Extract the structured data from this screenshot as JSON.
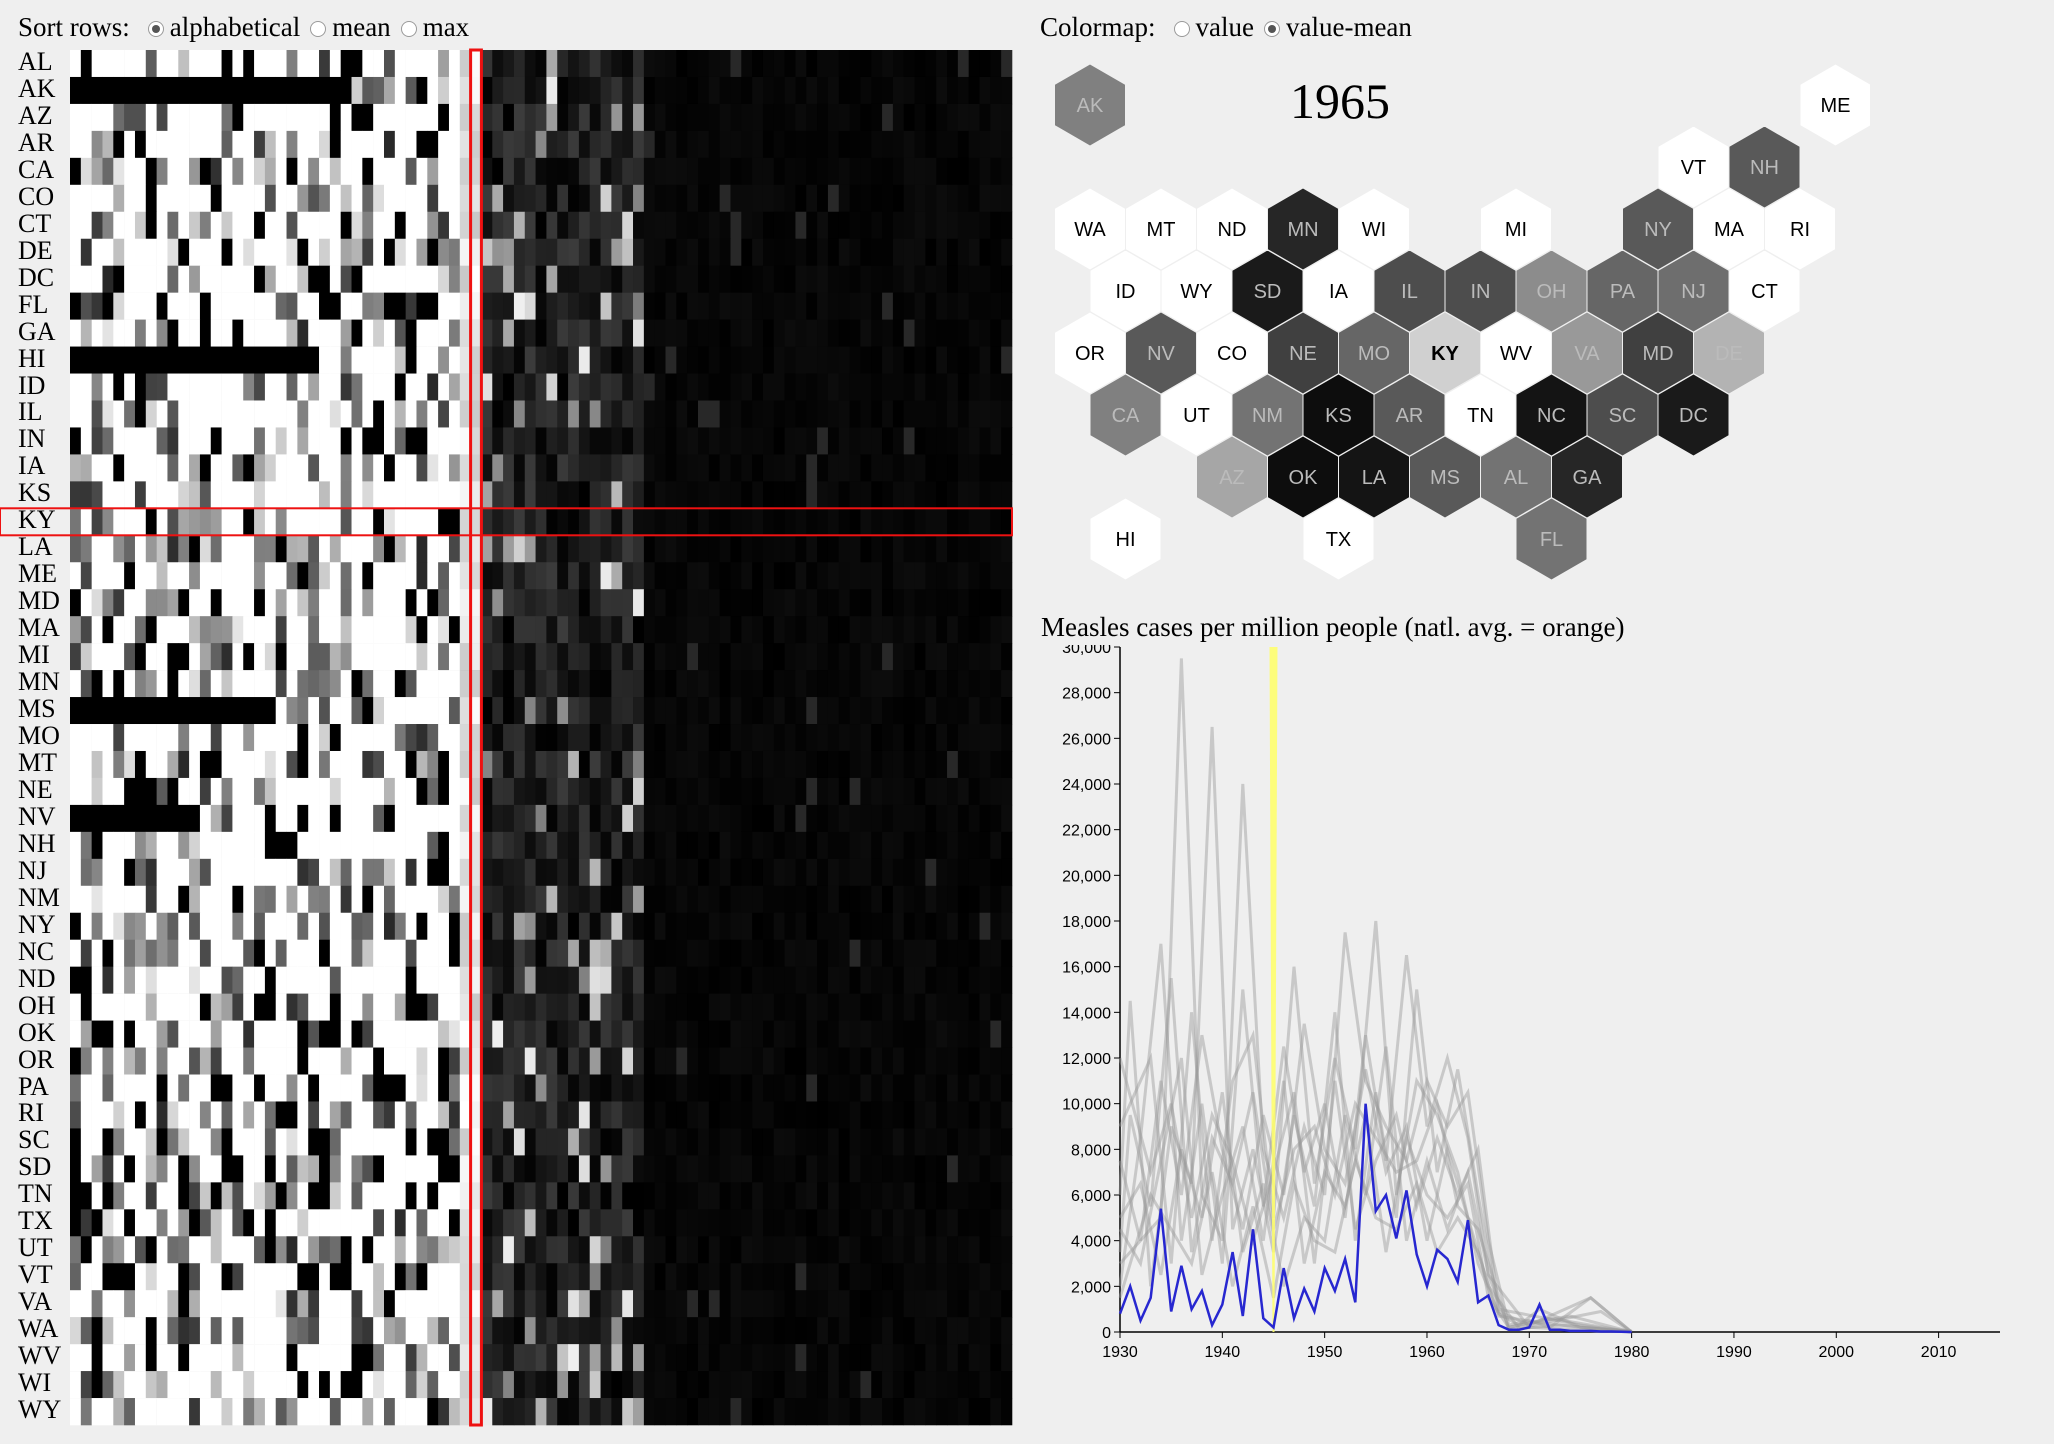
{
  "sort_controls": {
    "label": "Sort rows:",
    "options": [
      {
        "label": "alphabetical",
        "selected": true
      },
      {
        "label": "mean",
        "selected": false
      },
      {
        "label": "max",
        "selected": false
      }
    ]
  },
  "colormap_controls": {
    "label": "Colormap:",
    "options": [
      {
        "label": "value",
        "selected": false
      },
      {
        "label": "value-mean",
        "selected": true
      }
    ]
  },
  "states": [
    "AL",
    "AK",
    "AZ",
    "AR",
    "CA",
    "CO",
    "CT",
    "DE",
    "DC",
    "FL",
    "GA",
    "HI",
    "ID",
    "IL",
    "IN",
    "IA",
    "KS",
    "KY",
    "LA",
    "ME",
    "MD",
    "MA",
    "MI",
    "MN",
    "MS",
    "MO",
    "MT",
    "NE",
    "NV",
    "NH",
    "NJ",
    "NM",
    "NY",
    "NC",
    "ND",
    "OH",
    "OK",
    "OR",
    "PA",
    "RI",
    "SC",
    "SD",
    "TN",
    "TX",
    "UT",
    "VT",
    "VA",
    "WA",
    "WV",
    "WI",
    "WY"
  ],
  "selected_state": "KY",
  "selected_year": "1965",
  "hexmap": {
    "cells": [
      {
        "state": "AK",
        "row": 0,
        "col": 0,
        "shade": "#808080"
      },
      {
        "state": "ME",
        "row": 0,
        "col": 10.5,
        "shade": "#ffffff"
      },
      {
        "state": "VT",
        "row": 1,
        "col": 8.5,
        "shade": "#ffffff"
      },
      {
        "state": "NH",
        "row": 1,
        "col": 9.5,
        "shade": "#595959"
      },
      {
        "state": "WA",
        "row": 2,
        "col": 0,
        "shade": "#ffffff"
      },
      {
        "state": "MT",
        "row": 2,
        "col": 1,
        "shade": "#ffffff"
      },
      {
        "state": "ND",
        "row": 2,
        "col": 2,
        "shade": "#ffffff"
      },
      {
        "state": "MN",
        "row": 2,
        "col": 3,
        "shade": "#262626"
      },
      {
        "state": "WI",
        "row": 2,
        "col": 4,
        "shade": "#ffffff"
      },
      {
        "state": "MI",
        "row": 2,
        "col": 6,
        "shade": "#ffffff"
      },
      {
        "state": "NY",
        "row": 2,
        "col": 8,
        "shade": "#595959"
      },
      {
        "state": "MA",
        "row": 2,
        "col": 9,
        "shade": "#ffffff"
      },
      {
        "state": "RI",
        "row": 2,
        "col": 10,
        "shade": "#ffffff"
      },
      {
        "state": "ID",
        "row": 3,
        "col": 0.5,
        "shade": "#ffffff"
      },
      {
        "state": "WY",
        "row": 3,
        "col": 1.5,
        "shade": "#ffffff"
      },
      {
        "state": "SD",
        "row": 3,
        "col": 2.5,
        "shade": "#1a1a1a"
      },
      {
        "state": "IA",
        "row": 3,
        "col": 3.5,
        "shade": "#ffffff"
      },
      {
        "state": "IL",
        "row": 3,
        "col": 4.5,
        "shade": "#4d4d4d"
      },
      {
        "state": "IN",
        "row": 3,
        "col": 5.5,
        "shade": "#4d4d4d"
      },
      {
        "state": "OH",
        "row": 3,
        "col": 6.5,
        "shade": "#8c8c8c"
      },
      {
        "state": "PA",
        "row": 3,
        "col": 7.5,
        "shade": "#666666"
      },
      {
        "state": "NJ",
        "row": 3,
        "col": 8.5,
        "shade": "#6e6e6e"
      },
      {
        "state": "CT",
        "row": 3,
        "col": 9.5,
        "shade": "#ffffff"
      },
      {
        "state": "OR",
        "row": 4,
        "col": 0,
        "shade": "#ffffff"
      },
      {
        "state": "NV",
        "row": 4,
        "col": 1,
        "shade": "#595959"
      },
      {
        "state": "CO",
        "row": 4,
        "col": 2,
        "shade": "#ffffff"
      },
      {
        "state": "NE",
        "row": 4,
        "col": 3,
        "shade": "#404040"
      },
      {
        "state": "MO",
        "row": 4,
        "col": 4,
        "shade": "#666666"
      },
      {
        "state": "KY",
        "row": 4,
        "col": 5,
        "shade": "#d0d0d0",
        "selected": true
      },
      {
        "state": "WV",
        "row": 4,
        "col": 6,
        "shade": "#ffffff"
      },
      {
        "state": "VA",
        "row": 4,
        "col": 7,
        "shade": "#999999"
      },
      {
        "state": "MD",
        "row": 4,
        "col": 8,
        "shade": "#404040"
      },
      {
        "state": "DE",
        "row": 4,
        "col": 9,
        "shade": "#b3b3b3"
      },
      {
        "state": "CA",
        "row": 5,
        "col": 0.5,
        "shade": "#808080"
      },
      {
        "state": "UT",
        "row": 5,
        "col": 1.5,
        "shade": "#ffffff"
      },
      {
        "state": "NM",
        "row": 5,
        "col": 2.5,
        "shade": "#737373"
      },
      {
        "state": "KS",
        "row": 5,
        "col": 3.5,
        "shade": "#0d0d0d"
      },
      {
        "state": "AR",
        "row": 5,
        "col": 4.5,
        "shade": "#595959"
      },
      {
        "state": "TN",
        "row": 5,
        "col": 5.5,
        "shade": "#ffffff"
      },
      {
        "state": "NC",
        "row": 5,
        "col": 6.5,
        "shade": "#141414"
      },
      {
        "state": "SC",
        "row": 5,
        "col": 7.5,
        "shade": "#4d4d4d"
      },
      {
        "state": "DC",
        "row": 5,
        "col": 8.5,
        "shade": "#1a1a1a"
      },
      {
        "state": "AZ",
        "row": 6,
        "col": 2,
        "shade": "#a6a6a6"
      },
      {
        "state": "OK",
        "row": 6,
        "col": 3,
        "shade": "#0d0d0d"
      },
      {
        "state": "LA",
        "row": 6,
        "col": 4,
        "shade": "#141414"
      },
      {
        "state": "MS",
        "row": 6,
        "col": 5,
        "shade": "#595959"
      },
      {
        "state": "AL",
        "row": 6,
        "col": 6,
        "shade": "#737373"
      },
      {
        "state": "GA",
        "row": 6,
        "col": 7,
        "shade": "#262626"
      },
      {
        "state": "HI",
        "row": 7,
        "col": 0.5,
        "shade": "#ffffff"
      },
      {
        "state": "TX",
        "row": 7,
        "col": 3.5,
        "shade": "#ffffff"
      },
      {
        "state": "FL",
        "row": 7,
        "col": 6.5,
        "shade": "#737373"
      }
    ]
  },
  "chart_data": {
    "type": "line",
    "title": "Measles cases per million people (natl. avg. = orange)",
    "x_range": [
      1930,
      2016
    ],
    "y_range": [
      0,
      30000
    ],
    "x_ticks": [
      "1930",
      "1940",
      "1950",
      "1960",
      "1970",
      "1980",
      "1990",
      "2000",
      "2010"
    ],
    "y_ticks": [
      "0",
      "2,000",
      "4,000",
      "6,000",
      "8,000",
      "10,000",
      "12,000",
      "14,000",
      "16,000",
      "18,000",
      "20,000",
      "22,000",
      "24,000",
      "26,000",
      "28,000",
      "30,000"
    ],
    "highlight_year": 1945,
    "highlight_color": "#ffff66",
    "selected_series_color": "#2727d0",
    "background_series_color": "#999999",
    "selected_series": {
      "x": [
        1930,
        1931,
        1932,
        1933,
        1934,
        1935,
        1936,
        1937,
        1938,
        1939,
        1940,
        1941,
        1942,
        1943,
        1944,
        1945,
        1946,
        1947,
        1948,
        1949,
        1950,
        1951,
        1952,
        1953,
        1954,
        1955,
        1956,
        1957,
        1958,
        1959,
        1960,
        1961,
        1962,
        1963,
        1964,
        1965,
        1966,
        1967,
        1968,
        1969,
        1970,
        1971,
        1972,
        1973,
        1974,
        1975,
        1976,
        1977,
        1978,
        1979,
        1980
      ],
      "y": [
        800,
        2000,
        500,
        1500,
        5400,
        900,
        2900,
        1000,
        1800,
        300,
        1200,
        3500,
        700,
        4500,
        600,
        200,
        2800,
        600,
        1900,
        900,
        2800,
        1800,
        3200,
        1300,
        10000,
        5300,
        6000,
        4100,
        6200,
        3400,
        2000,
        3600,
        3200,
        2200,
        4900,
        1300,
        1600,
        300,
        100,
        100,
        200,
        1200,
        100,
        100,
        50,
        50,
        50,
        20,
        20,
        10,
        0
      ]
    },
    "background_series": [
      {
        "x": [
          1930,
          1934,
          1936,
          1938,
          1940,
          1942,
          1944,
          1946,
          1948,
          1950,
          1952,
          1954,
          1956,
          1958,
          1960,
          1962,
          1964,
          1966,
          1968,
          1970,
          1972,
          1976,
          1980
        ],
        "y": [
          3000,
          5000,
          29500,
          6000,
          4000,
          24000,
          8000,
          5000,
          9000,
          6000,
          17500,
          11000,
          9000,
          7500,
          11000,
          9000,
          10500,
          4000,
          300,
          500,
          200,
          1500,
          0
        ]
      },
      {
        "x": [
          1930,
          1933,
          1935,
          1937,
          1939,
          1941,
          1943,
          1945,
          1947,
          1949,
          1951,
          1953,
          1955,
          1957,
          1959,
          1961,
          1963,
          1965,
          1967,
          1969,
          1971,
          1975,
          1980
        ],
        "y": [
          9000,
          12000,
          3000,
          14000,
          4000,
          11000,
          13000,
          5000,
          16000,
          6500,
          12000,
          8000,
          18000,
          6000,
          11000,
          9500,
          7000,
          3000,
          800,
          300,
          1000,
          200,
          50
        ]
      },
      {
        "x": [
          1930,
          1932,
          1934,
          1936,
          1938,
          1940,
          1942,
          1944,
          1946,
          1948,
          1950,
          1952,
          1954,
          1956,
          1958,
          1960,
          1962,
          1964,
          1966,
          1968,
          1970,
          1974,
          1980
        ],
        "y": [
          2000,
          8500,
          17000,
          4000,
          10000,
          3000,
          15000,
          5500,
          12500,
          7000,
          10000,
          5000,
          13000,
          7500,
          16500,
          9000,
          12000,
          8500,
          2500,
          200,
          400,
          700,
          0
        ]
      },
      {
        "x": [
          1930,
          1931,
          1933,
          1935,
          1937,
          1939,
          1941,
          1943,
          1945,
          1947,
          1949,
          1951,
          1953,
          1955,
          1957,
          1959,
          1961,
          1963,
          1965,
          1967,
          1970,
          1976,
          1980
        ],
        "y": [
          6000,
          14500,
          2000,
          9000,
          6500,
          26500,
          4500,
          8000,
          3500,
          9500,
          5500,
          14000,
          4000,
          10500,
          5000,
          15000,
          7000,
          11500,
          6000,
          900,
          300,
          1500,
          0
        ]
      },
      {
        "x": [
          1930,
          1932,
          1934,
          1936,
          1938,
          1940,
          1942,
          1944,
          1946,
          1948,
          1950,
          1952,
          1954,
          1956,
          1958,
          1960,
          1962,
          1964,
          1966,
          1968,
          1972,
          1980
        ],
        "y": [
          4500,
          3000,
          7500,
          12000,
          2500,
          6000,
          9000,
          4000,
          11000,
          3000,
          7000,
          5500,
          9500,
          3500,
          8500,
          6000,
          5000,
          6500,
          1500,
          200,
          600,
          0
        ]
      },
      {
        "x": [
          1930,
          1933,
          1935,
          1937,
          1939,
          1941,
          1943,
          1945,
          1947,
          1949,
          1951,
          1953,
          1955,
          1957,
          1959,
          1961,
          1963,
          1965,
          1967,
          1971,
          1980
        ],
        "y": [
          1500,
          6000,
          4500,
          3000,
          7000,
          2000,
          5500,
          1500,
          6500,
          4000,
          3500,
          7500,
          5000,
          4500,
          6500,
          3500,
          5000,
          3500,
          700,
          400,
          0
        ]
      },
      {
        "x": [
          1930,
          1932,
          1934,
          1936,
          1938,
          1940,
          1942,
          1944,
          1946,
          1948,
          1950,
          1952,
          1954,
          1956,
          1958,
          1960,
          1962,
          1964,
          1966,
          1969,
          1973,
          1980
        ],
        "y": [
          7500,
          4000,
          11000,
          6000,
          13000,
          8000,
          4500,
          9500,
          6000,
          13500,
          8000,
          6500,
          11500,
          7000,
          9000,
          4000,
          8000,
          5000,
          2000,
          150,
          300,
          0
        ]
      },
      {
        "x": [
          1930,
          1931,
          1933,
          1935,
          1937,
          1939,
          1941,
          1943,
          1945,
          1947,
          1949,
          1951,
          1953,
          1955,
          1957,
          1959,
          1961,
          1963,
          1965,
          1968,
          1977,
          1980
        ],
        "y": [
          3500,
          9500,
          5500,
          15500,
          3500,
          8500,
          6500,
          10500,
          4500,
          8000,
          9000,
          6000,
          10000,
          8500,
          7000,
          7500,
          10000,
          5500,
          4500,
          100,
          900,
          0
        ]
      },
      {
        "x": [
          1930,
          1932,
          1934,
          1936,
          1938,
          1940,
          1942,
          1944,
          1946,
          1948,
          1950,
          1952,
          1954,
          1956,
          1958,
          1960,
          1962,
          1964,
          1966,
          1970,
          1980
        ],
        "y": [
          5000,
          6500,
          2500,
          8000,
          5000,
          10500,
          3500,
          6500,
          2000,
          5000,
          4000,
          9500,
          6000,
          12500,
          4000,
          7500,
          4500,
          7000,
          2500,
          200,
          0
        ]
      },
      {
        "x": [
          1930,
          1933,
          1935,
          1937,
          1939,
          1941,
          1943,
          1945,
          1947,
          1949,
          1951,
          1953,
          1955,
          1957,
          1959,
          1961,
          1963,
          1965,
          1967,
          1975,
          1980
        ],
        "y": [
          12000,
          7000,
          10000,
          5000,
          9500,
          7500,
          4000,
          7000,
          10500,
          3000,
          11000,
          4500,
          7500,
          9500,
          5500,
          8500,
          6000,
          8000,
          1000,
          300,
          0
        ]
      }
    ]
  }
}
